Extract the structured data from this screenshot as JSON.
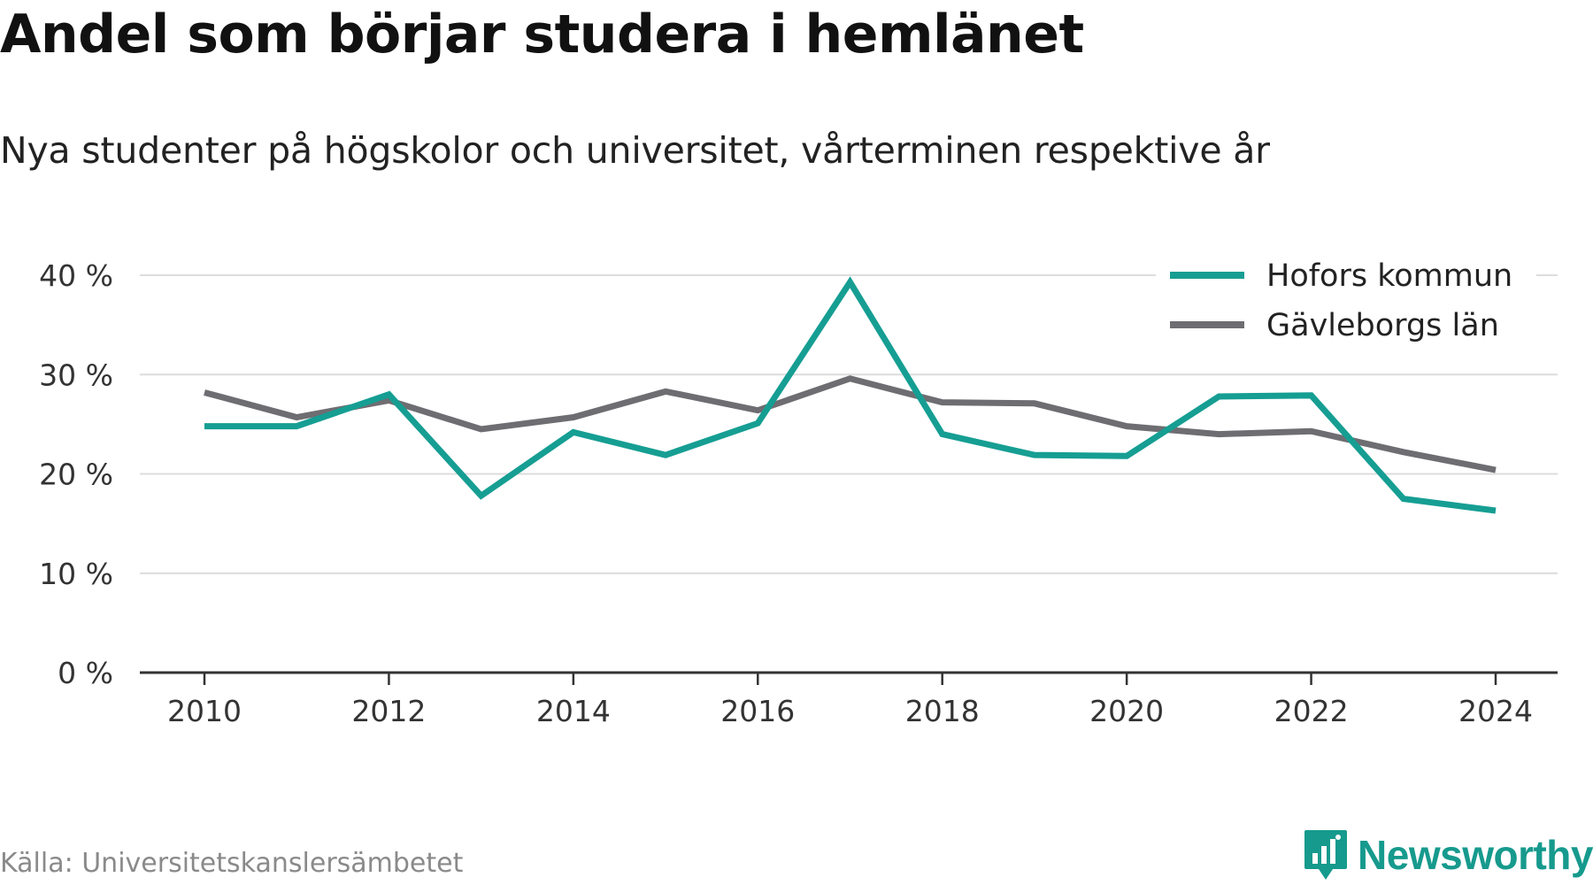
{
  "title": "Andel som börjar studera i hemlänet",
  "subtitle": "Nya studenter på högskolor och universitet, vårterminen respektive år",
  "source": "Källa: Universitetskanslersämbetet",
  "brand": {
    "name": "Newsworthy",
    "icon": "newsworthy-logo-icon",
    "color": "#169a8d"
  },
  "chart_data": {
    "type": "line",
    "x": [
      2010,
      2011,
      2012,
      2013,
      2014,
      2015,
      2016,
      2017,
      2018,
      2019,
      2020,
      2021,
      2022,
      2023,
      2024
    ],
    "x_ticks": [
      "2010",
      "2012",
      "2014",
      "2016",
      "2018",
      "2020",
      "2022",
      "2024"
    ],
    "y_ticks": [
      "0 %",
      "10 %",
      "20 %",
      "30 %",
      "40 %"
    ],
    "ylim": [
      0,
      40
    ],
    "y_unit": "%",
    "grid": true,
    "legend_position": "top-right",
    "series": [
      {
        "name": "Hofors kommun",
        "color": "#169e93",
        "values": [
          24.8,
          24.8,
          28.0,
          17.8,
          24.2,
          21.9,
          25.1,
          39.3,
          24.0,
          21.9,
          21.8,
          27.8,
          27.9,
          17.5,
          16.3
        ]
      },
      {
        "name": "Gävleborgs län",
        "color": "#6e6d72",
        "values": [
          28.2,
          25.7,
          27.4,
          24.5,
          25.7,
          28.3,
          26.4,
          29.6,
          27.2,
          27.1,
          24.8,
          24.0,
          24.3,
          22.2,
          20.4
        ]
      }
    ]
  }
}
